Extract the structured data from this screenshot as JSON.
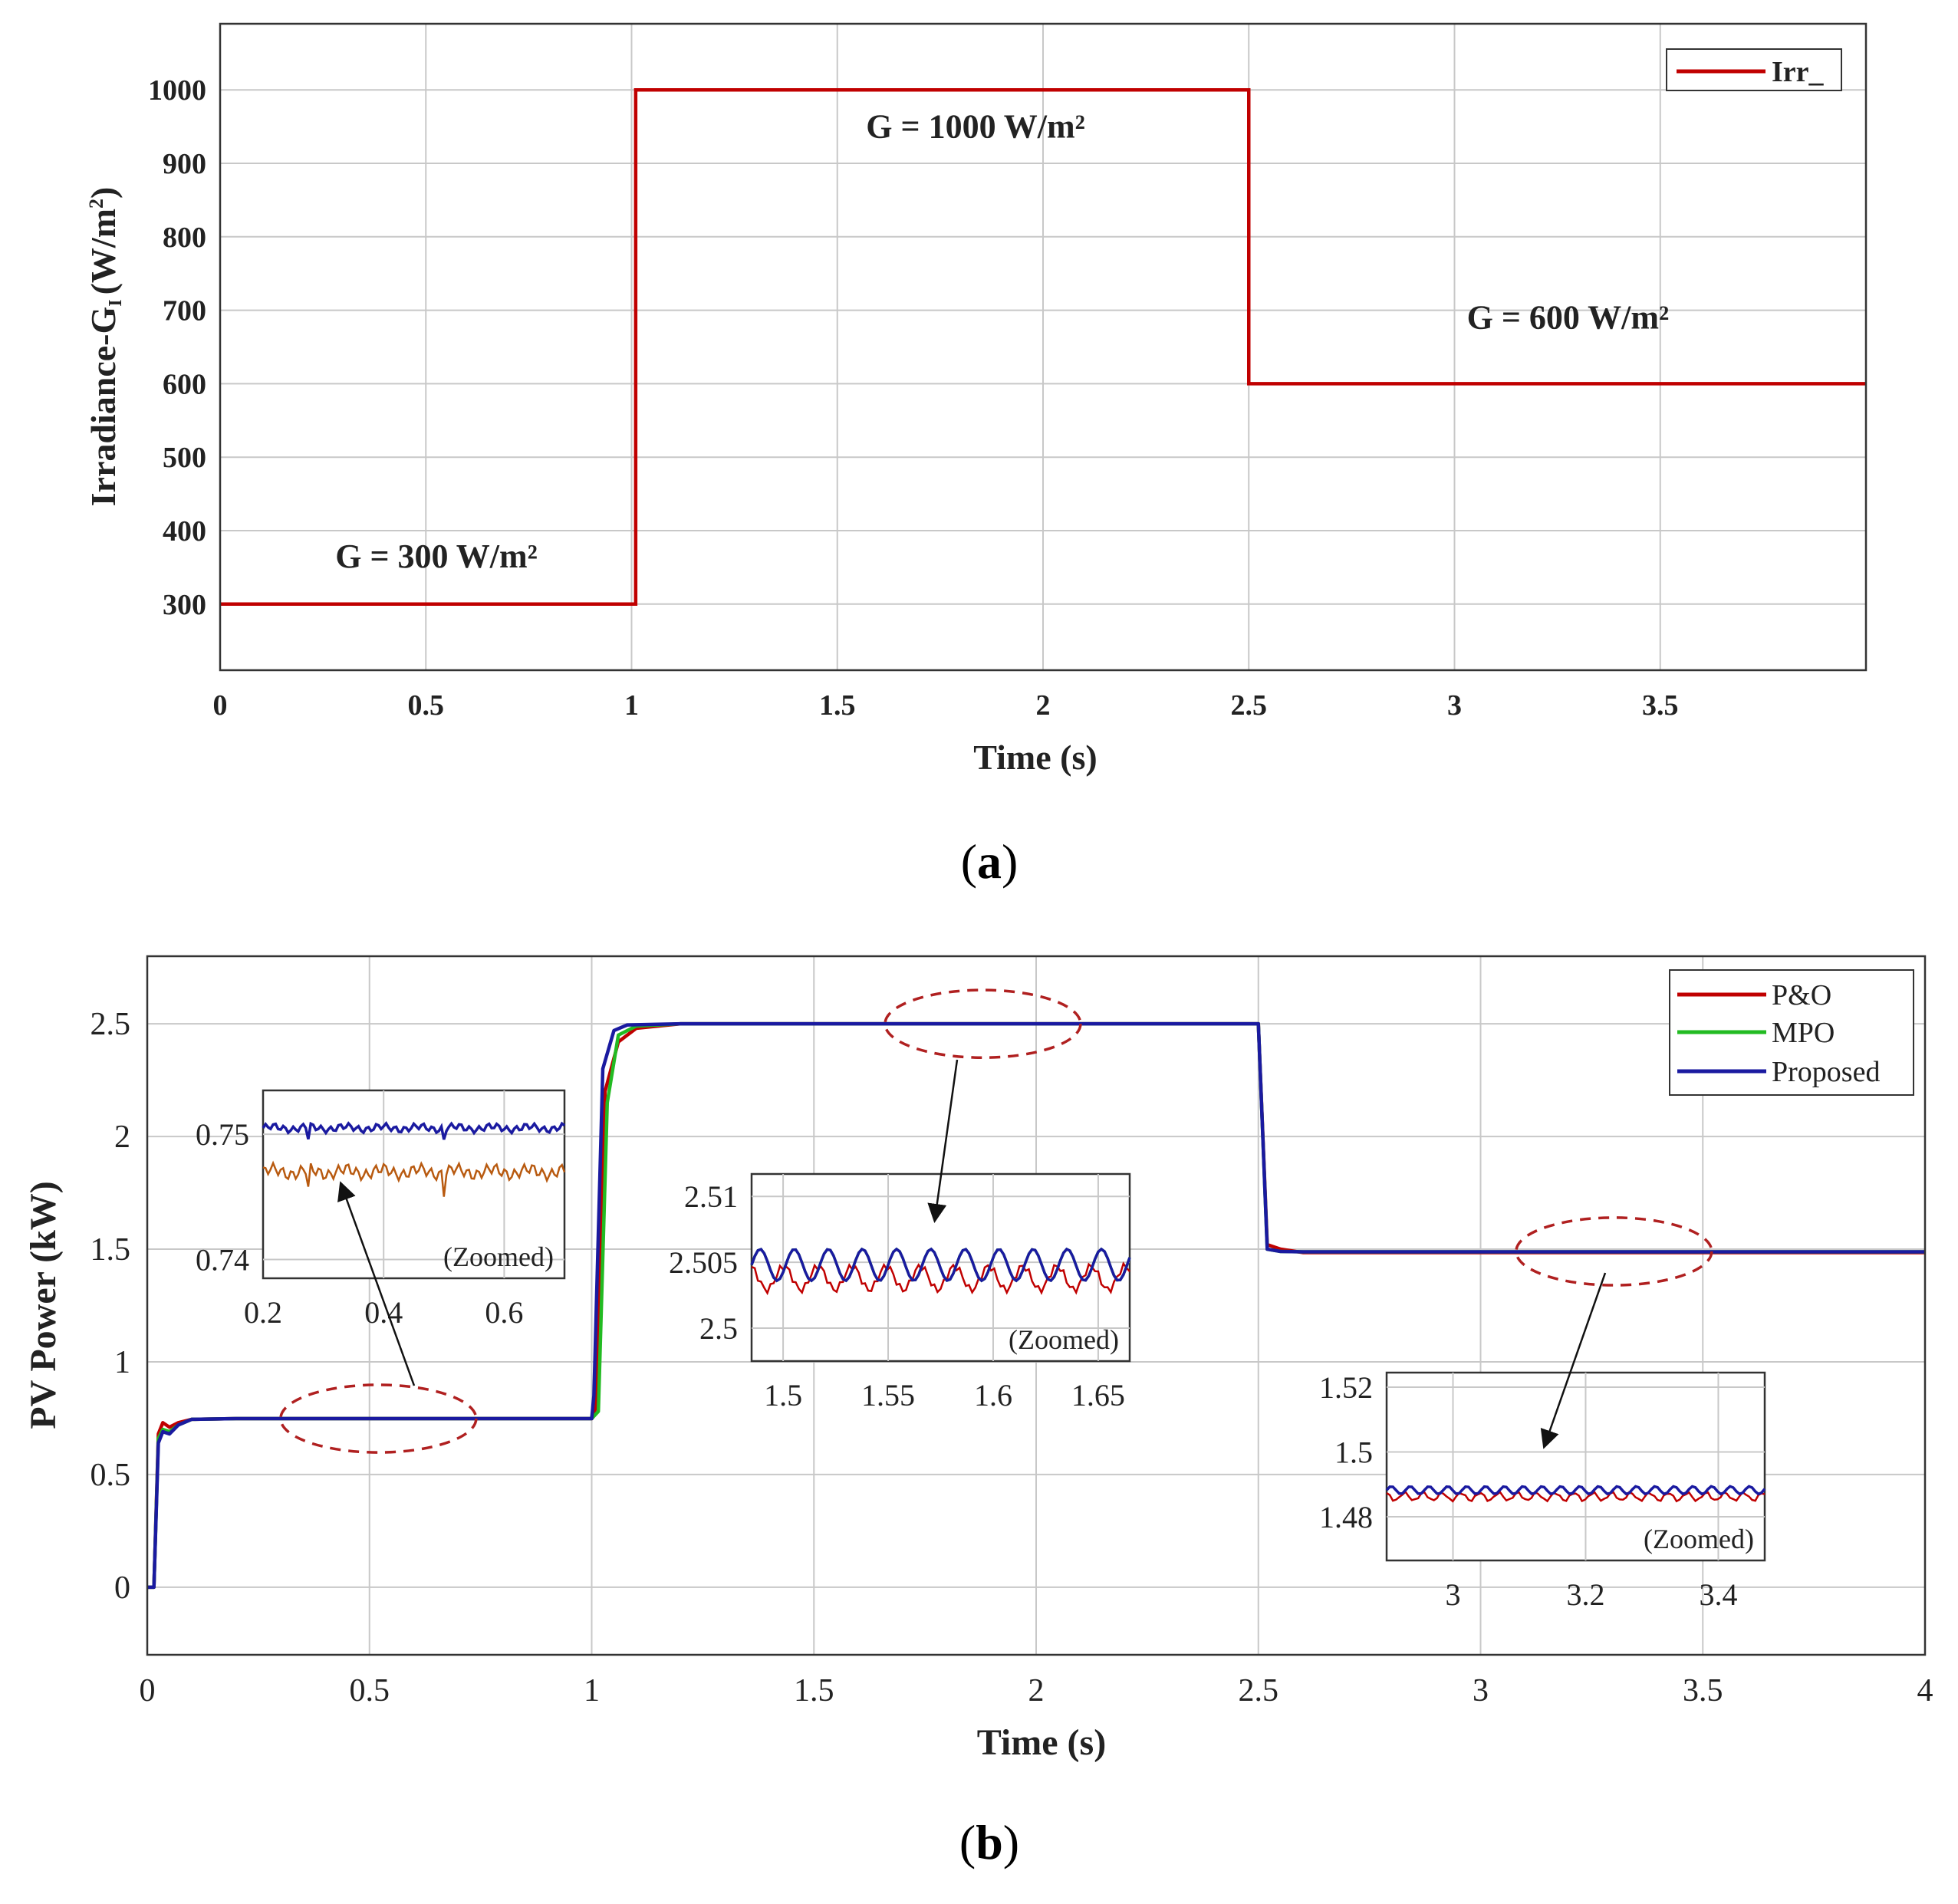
{
  "chart_data": [
    {
      "id": "a",
      "type": "line",
      "panel_label": "a",
      "xlabel": "Time (s)",
      "ylabel": "Irradiance-G",
      "ylabel_subscript": "I",
      "ylabel_units": "(W/m",
      "ylabel_units_sup": "2",
      "ylabel_units_close": ")",
      "xlim": [
        0,
        4
      ],
      "ylim": [
        210,
        1090
      ],
      "xticks": [
        0,
        0.5,
        1,
        1.5,
        2,
        2.5,
        3,
        3.5
      ],
      "xtick_labels": [
        "0",
        "0.5",
        "1",
        "1.5",
        "2",
        "2.5",
        "3",
        "3.5"
      ],
      "yticks": [
        300,
        400,
        500,
        600,
        700,
        800,
        900,
        1000
      ],
      "ytick_labels": [
        "300",
        "400",
        "500",
        "600",
        "700",
        "800",
        "900",
        "1000"
      ],
      "series": [
        {
          "name": "Irr_",
          "color": "#c00000",
          "x": [
            0,
            1.01,
            1.01,
            2.5,
            2.5,
            4.0
          ],
          "y": [
            300,
            300,
            1000,
            1000,
            600,
            600
          ]
        }
      ],
      "annotations": [
        {
          "text": "G = 300 W/m²",
          "x": 0.28,
          "y": 350
        },
        {
          "text": "G = 1000 W/m²",
          "x": 1.57,
          "y": 935
        },
        {
          "text": "G = 600 W/m²",
          "x": 3.03,
          "y": 675
        }
      ],
      "legend": {
        "position": "top-right",
        "entries": [
          "Irr_"
        ]
      },
      "grid": true
    },
    {
      "id": "b",
      "type": "line",
      "panel_label": "b",
      "xlabel": "Time (s)",
      "ylabel": "PV Power (kW)",
      "xlim": [
        0,
        4
      ],
      "ylim": [
        -0.3,
        2.8
      ],
      "xticks": [
        0,
        0.5,
        1,
        1.5,
        2,
        2.5,
        3,
        3.5,
        4
      ],
      "xtick_labels": [
        "0",
        "0.5",
        "1",
        "1.5",
        "2",
        "2.5",
        "3",
        "3.5",
        "4"
      ],
      "yticks": [
        0,
        0.5,
        1,
        1.5,
        2,
        2.5
      ],
      "ytick_labels": [
        "0",
        "0.5",
        "1",
        "1.5",
        "2",
        "2.5"
      ],
      "series": [
        {
          "name": "P&O",
          "color": "#c00000",
          "x": [
            0,
            0.015,
            0.025,
            0.035,
            0.05,
            0.07,
            0.1,
            0.2,
            1.0,
            1.01,
            1.03,
            1.06,
            1.1,
            1.2,
            1.5,
            2.5,
            2.52,
            2.55,
            2.6,
            4.0
          ],
          "y": [
            0,
            0,
            0.68,
            0.73,
            0.71,
            0.73,
            0.745,
            0.748,
            0.748,
            0.8,
            2.2,
            2.42,
            2.48,
            2.5,
            2.5,
            2.5,
            1.52,
            1.5,
            1.485,
            1.485
          ]
        },
        {
          "name": "MPO",
          "color": "#22bb22",
          "x": [
            0,
            0.015,
            0.025,
            0.035,
            0.05,
            0.07,
            0.1,
            0.2,
            1.0,
            1.015,
            1.035,
            1.06,
            1.1,
            1.2,
            1.5,
            2.5,
            2.52,
            2.55,
            2.6,
            4.0
          ],
          "y": [
            0,
            0,
            0.66,
            0.7,
            0.69,
            0.72,
            0.745,
            0.748,
            0.748,
            0.78,
            2.15,
            2.45,
            2.49,
            2.5,
            2.5,
            2.5,
            1.5,
            1.49,
            1.488,
            1.488
          ]
        },
        {
          "name": "Proposed",
          "color": "#1a1aa0",
          "x": [
            0,
            0.015,
            0.025,
            0.035,
            0.05,
            0.07,
            0.1,
            0.2,
            1.0,
            1.005,
            1.025,
            1.05,
            1.08,
            1.2,
            1.5,
            2.5,
            2.52,
            2.55,
            2.6,
            4.0
          ],
          "y": [
            0,
            0,
            0.64,
            0.69,
            0.68,
            0.72,
            0.745,
            0.748,
            0.748,
            0.85,
            2.3,
            2.47,
            2.495,
            2.5,
            2.5,
            2.5,
            1.5,
            1.49,
            1.488,
            1.488
          ]
        }
      ],
      "legend": {
        "position": "top-right",
        "entries": [
          "P&O",
          "MPO",
          "Proposed"
        ]
      },
      "grid": true,
      "insets": [
        {
          "id": "z1",
          "label": "(Zoomed)",
          "xlim": [
            0.2,
            0.7
          ],
          "ylim": [
            0.7385,
            0.7535
          ],
          "xticks": [
            0.2,
            0.4,
            0.6
          ],
          "xtick_labels": [
            "0.2",
            "0.4",
            "0.6"
          ],
          "yticks": [
            0.74,
            0.75
          ],
          "ytick_labels": [
            "0.74",
            "0.75"
          ],
          "series": [
            {
              "name": "Proposed",
              "color": "#1a1aa0",
              "base": 0.7505,
              "amp": 0.0004
            },
            {
              "name": "P&O",
              "color": "#b85a10",
              "base": 0.747,
              "amp": 0.0007
            }
          ]
        },
        {
          "id": "z2",
          "label": "(Zoomed)",
          "xlim": [
            1.485,
            1.665
          ],
          "ylim": [
            2.4975,
            2.5117
          ],
          "xticks": [
            1.5,
            1.55,
            1.6,
            1.65
          ],
          "xtick_labels": [
            "1.5",
            "1.55",
            "1.6",
            "1.65"
          ],
          "yticks": [
            2.5,
            2.505,
            2.51
          ],
          "ytick_labels": [
            "2.5",
            "2.505",
            "2.51"
          ],
          "series": [
            {
              "name": "P&O",
              "color": "#c00000",
              "base": 2.5038,
              "amp": 0.0009
            },
            {
              "name": "MPO",
              "color": "#22bb22",
              "base": 2.5048,
              "amp": 0.0012
            },
            {
              "name": "Proposed",
              "color": "#1a1aa0",
              "base": 2.5048,
              "amp": 0.0012
            }
          ]
        },
        {
          "id": "z3",
          "label": "(Zoomed)",
          "xlim": [
            2.9,
            3.47
          ],
          "ylim": [
            1.4665,
            1.5245
          ],
          "xticks": [
            3.0,
            3.2,
            3.4
          ],
          "xtick_labels": [
            "3",
            "3.2",
            "3.4"
          ],
          "yticks": [
            1.48,
            1.5,
            1.52
          ],
          "ytick_labels": [
            "1.48",
            "1.5",
            "1.52"
          ],
          "series": [
            {
              "name": "P&O",
              "color": "#c00000",
              "base": 1.4862,
              "amp": 0.0012
            },
            {
              "name": "Proposed",
              "color": "#1a1aa0",
              "base": 1.4882,
              "amp": 0.0012
            }
          ]
        }
      ],
      "zoom_regions": [
        {
          "cx": 0.52,
          "cy": 0.748,
          "rx": 0.22,
          "ry": 0.15
        },
        {
          "cx": 1.88,
          "cy": 2.5,
          "rx": 0.22,
          "ry": 0.15
        },
        {
          "cx": 3.3,
          "cy": 1.49,
          "rx": 0.22,
          "ry": 0.15
        }
      ]
    }
  ]
}
